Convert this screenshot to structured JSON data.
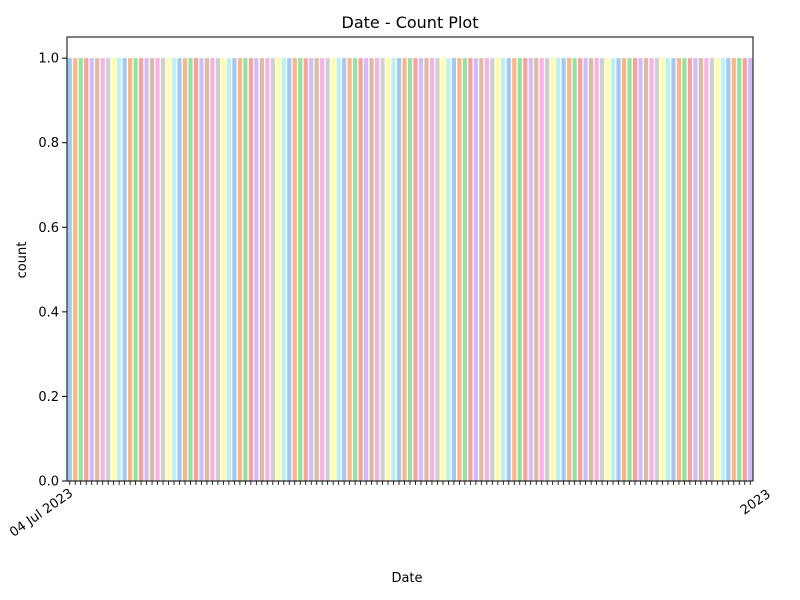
{
  "chart_data": {
    "type": "bar",
    "title": "Date  - Count Plot",
    "xlabel": "Date",
    "ylabel": "count",
    "ylim": [
      0,
      1.05
    ],
    "yticks": [
      "0.0",
      "0.2",
      "0.4",
      "0.6",
      "0.8",
      "1.0"
    ],
    "ytick_values": [
      0,
      0.2,
      0.4,
      0.6,
      0.8,
      1.0
    ],
    "first_category": "04 Jul 2023",
    "last_category": "2023",
    "bar_count": 125,
    "bar_value": 1,
    "palette": [
      "#a1c9f4",
      "#ffb482",
      "#8de5a1",
      "#ff9f9b",
      "#d0bbff",
      "#debb9b",
      "#fab0e4",
      "#cfcfcf",
      "#fffea3",
      "#b9f2f0"
    ]
  }
}
